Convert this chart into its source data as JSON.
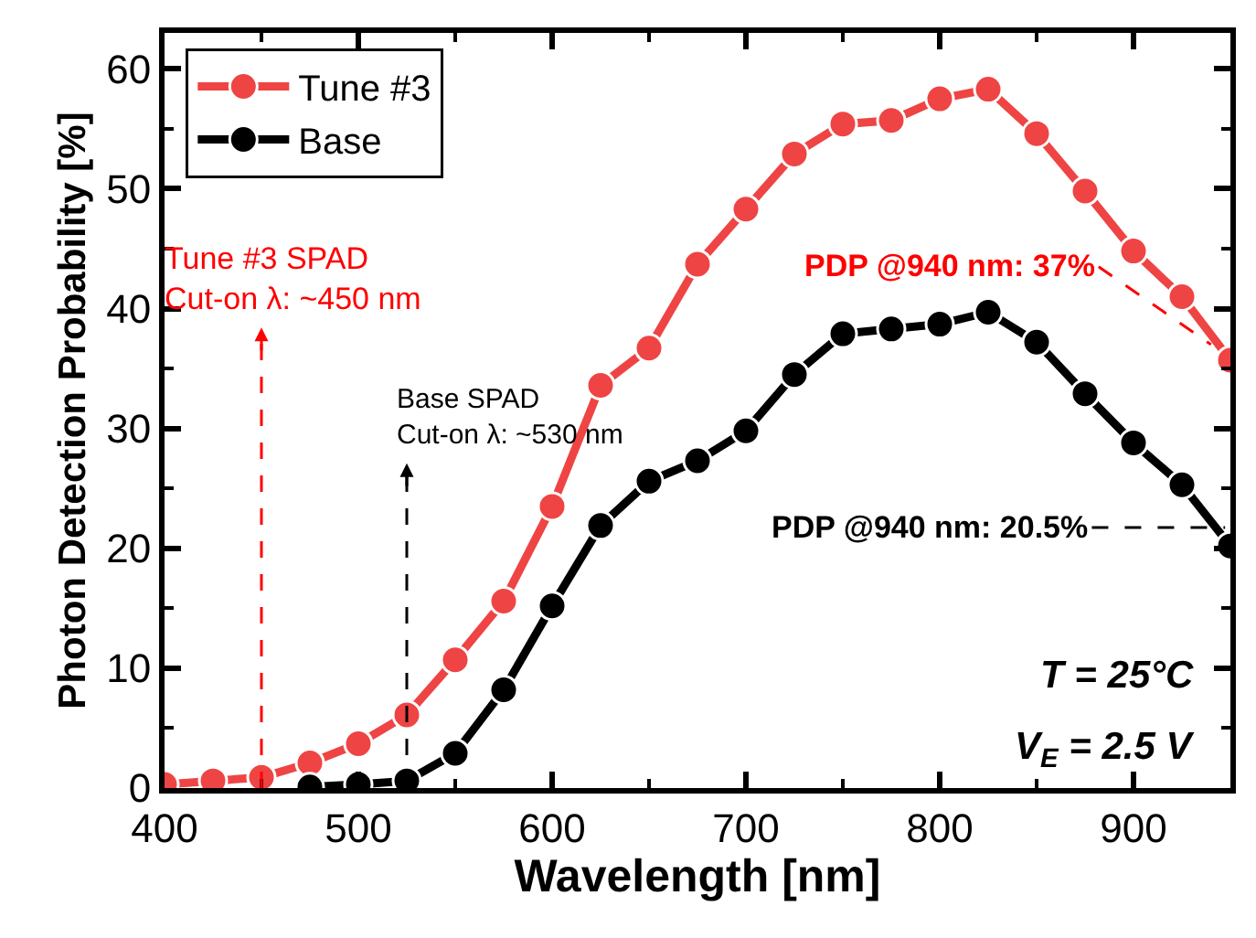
{
  "chart_data": {
    "type": "line",
    "xlabel": "Wavelength [nm]",
    "ylabel": "Photon Detection Probability [%]",
    "x": [
      400,
      425,
      450,
      475,
      500,
      525,
      550,
      575,
      600,
      625,
      650,
      675,
      700,
      725,
      750,
      775,
      800,
      825,
      850,
      875,
      900,
      925,
      950
    ],
    "series": [
      {
        "name": "Tune #3",
        "color": "#ef4444",
        "values": [
          0.3,
          0.6,
          0.9,
          2.1,
          3.7,
          6.1,
          10.7,
          15.6,
          23.5,
          33.6,
          36.7,
          43.7,
          48.3,
          52.9,
          55.4,
          55.7,
          57.5,
          58.3,
          54.6,
          49.8,
          44.8,
          41.0,
          35.7
        ]
      },
      {
        "name": "Base",
        "color": "#000000",
        "x": [
          475,
          500,
          525,
          550,
          575,
          600,
          625,
          650,
          675,
          700,
          725,
          750,
          775,
          800,
          825,
          850,
          875,
          900,
          925,
          950
        ],
        "values": [
          0.1,
          0.3,
          0.6,
          2.9,
          8.2,
          15.2,
          21.9,
          25.6,
          27.3,
          29.8,
          34.5,
          37.9,
          38.3,
          38.7,
          39.7,
          37.2,
          32.9,
          28.8,
          25.3,
          20.2
        ]
      }
    ],
    "xlim": [
      400,
      950
    ],
    "xticks": [
      400,
      500,
      600,
      700,
      800,
      900
    ],
    "ylim": [
      0,
      63
    ],
    "yticks": [
      0,
      10,
      20,
      30,
      40,
      50,
      60
    ],
    "legend": "top left",
    "marker": "circle",
    "line_style": "solid",
    "ref_lines": [
      {
        "axis": "x",
        "value": 450,
        "label": "Tune #3 SPAD\nCut-on λ: ~450 nm",
        "color": "#ff0000",
        "line_style": "dashed"
      },
      {
        "axis": "x",
        "value": 525,
        "label": "Base SPAD\nCut-on λ: ~530 nm",
        "color": "#000000",
        "line_style": "dashed"
      }
    ],
    "annotations": [
      {
        "text": "PDP @940 nm: 37%",
        "x": 940,
        "y": 37
      },
      "PDP @940 nm: 20.5%",
      "T = 25°C",
      "V$_{E}$ = 2.5 V"
    ]
  }
}
